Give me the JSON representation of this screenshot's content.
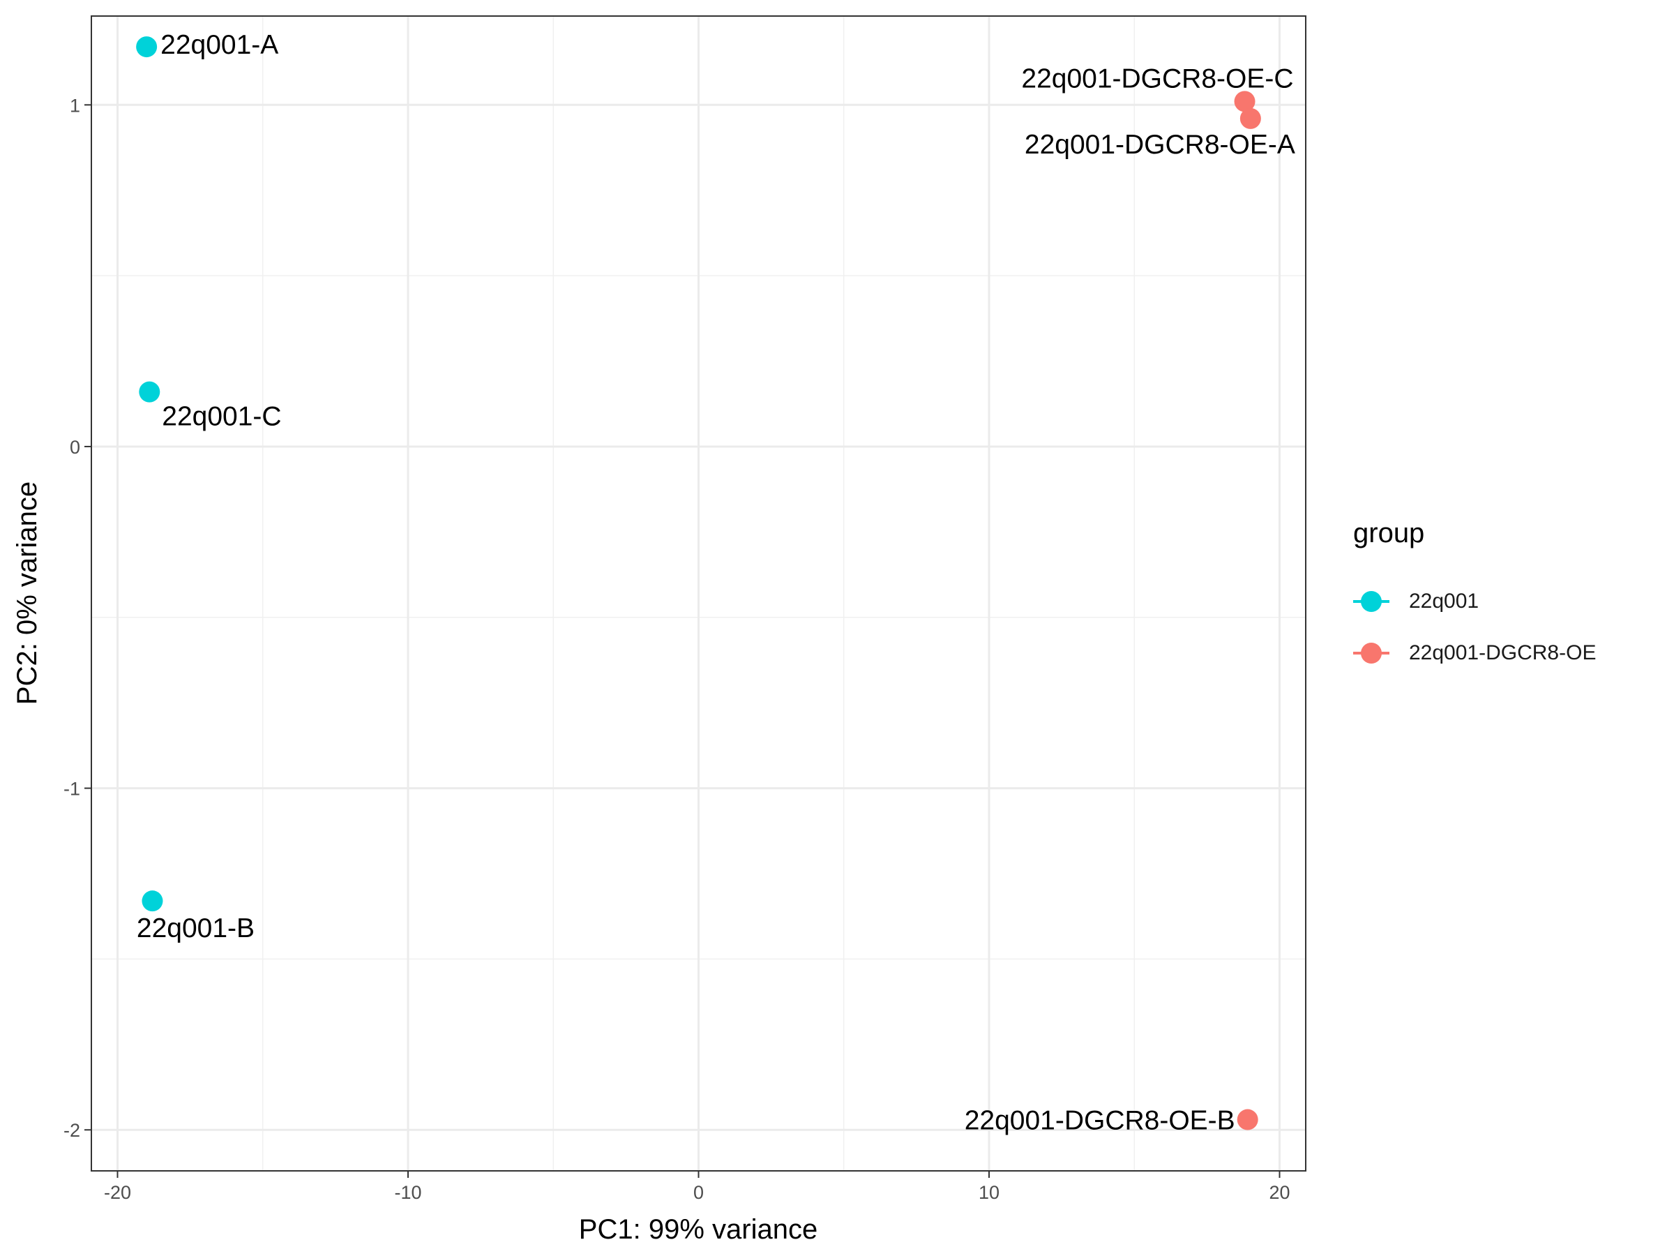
{
  "chart_data": {
    "type": "scatter",
    "xlabel": "PC1: 99% variance",
    "ylabel": "PC2: 0% variance",
    "xlim": [
      -20.9,
      20.9
    ],
    "ylim": [
      -2.12,
      1.26
    ],
    "x_ticks": [
      -20,
      -10,
      0,
      10,
      20
    ],
    "x_tick_labels": [
      "-20",
      "-10",
      "0",
      "10",
      "20"
    ],
    "y_ticks": [
      -2,
      -1,
      0,
      1
    ],
    "y_tick_labels": [
      "-2",
      "-1",
      "0",
      "1"
    ],
    "grid": true,
    "legend_position": "right",
    "legend_title": "group",
    "series": [
      {
        "name": "22q001",
        "color": "#00D2D9",
        "points": [
          {
            "label": "22q001-A",
            "x": -19.0,
            "y": 1.17
          },
          {
            "label": "22q001-C",
            "x": -18.9,
            "y": 0.16
          },
          {
            "label": "22q001-B",
            "x": -18.8,
            "y": -1.33
          }
        ]
      },
      {
        "name": "22q001-DGCR8-OE",
        "color": "#F8766D",
        "points": [
          {
            "label": "22q001-DGCR8-OE-C",
            "x": 18.8,
            "y": 1.01
          },
          {
            "label": "22q001-DGCR8-OE-A",
            "x": 19.0,
            "y": 0.96
          },
          {
            "label": "22q001-DGCR8-OE-B",
            "x": 18.9,
            "y": -1.97
          }
        ]
      }
    ]
  }
}
